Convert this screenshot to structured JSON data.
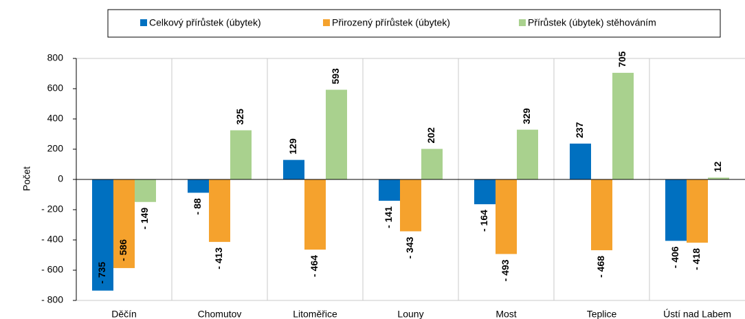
{
  "chart_data": {
    "type": "bar",
    "ylabel": "Počet",
    "categories": [
      "Děčín",
      "Chomutov",
      "Litoměřice",
      "Louny",
      "Most",
      "Teplice",
      "Ústí nad Labem"
    ],
    "series": [
      {
        "name": "Celkový přírůstek (úbytek)",
        "color": "#0070c0",
        "label_color": "#1f3864",
        "values": [
          -735,
          -88,
          129,
          -141,
          -164,
          237,
          -406
        ],
        "value_labels": [
          "- 735",
          "- 88",
          "129",
          "- 141",
          "- 164",
          "237",
          "- 406"
        ]
      },
      {
        "name": "Přirozený přírůstek (úbytek)",
        "color": "#f5a22d",
        "label_color": "#a0441c",
        "values": [
          -586,
          -413,
          -464,
          -343,
          -493,
          -468,
          -418
        ],
        "value_labels": [
          "- 586",
          "- 413",
          "- 464",
          "- 343",
          "- 493",
          "- 468",
          "- 418"
        ]
      },
      {
        "name": "Přírůstek (úbytek) stěhováním",
        "color": "#a9d18e",
        "label_color": "#000000",
        "values": [
          -149,
          325,
          593,
          202,
          329,
          705,
          12
        ],
        "value_labels": [
          "- 149",
          "325",
          "593",
          "202",
          "329",
          "705",
          "12"
        ]
      }
    ],
    "ylim": [
      -800,
      800
    ],
    "yticks": [
      800,
      600,
      400,
      200,
      0,
      {
        "value": -200,
        "label": "- 200"
      },
      {
        "value": -400,
        "label": "- 400"
      },
      {
        "value": -600,
        "label": "- 600"
      },
      {
        "value": -800,
        "label": "- 800"
      }
    ],
    "legend": "top"
  }
}
